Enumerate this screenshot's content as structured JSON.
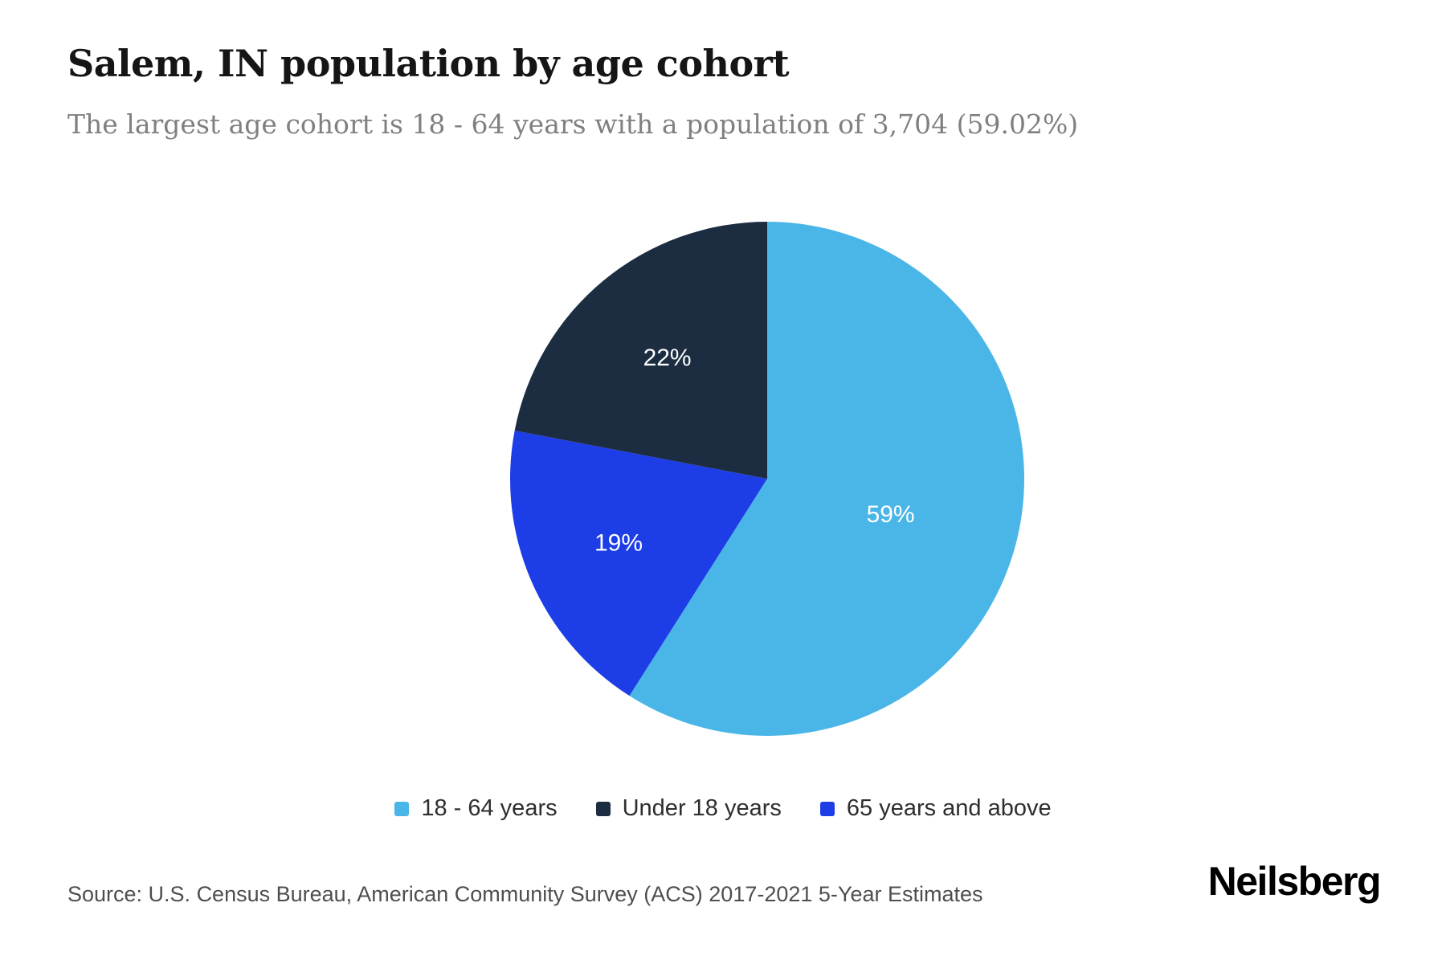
{
  "header": {
    "title": "Salem, IN population by age cohort",
    "subtitle": "The largest age cohort is 18 - 64 years with a population of 3,704 (59.02%)"
  },
  "chart_data": {
    "type": "pie",
    "title": "Salem, IN population by age cohort",
    "slices": [
      {
        "label": "18 - 64 years",
        "value_pct": 59,
        "display_pct": "59%",
        "color": "#4ab6e8"
      },
      {
        "label": "Under 18 years",
        "value_pct": 22,
        "display_pct": "22%",
        "color": "#1c2d42"
      },
      {
        "label": "65 years and above",
        "value_pct": 19,
        "display_pct": "19%",
        "color": "#1d3de6"
      }
    ],
    "clockwise_order": [
      0,
      2,
      1
    ],
    "start_angle": "12 o'clock",
    "largest_cohort": {
      "label": "18 - 64 years",
      "population": "3,704",
      "share": "59.02%"
    },
    "legend_position": "bottom",
    "label_color": "#ffffff"
  },
  "footer": {
    "source": "Source: U.S. Census Bureau, American Community Survey (ACS) 2017-2021 5-Year Estimates",
    "brand": "Neilsberg"
  }
}
